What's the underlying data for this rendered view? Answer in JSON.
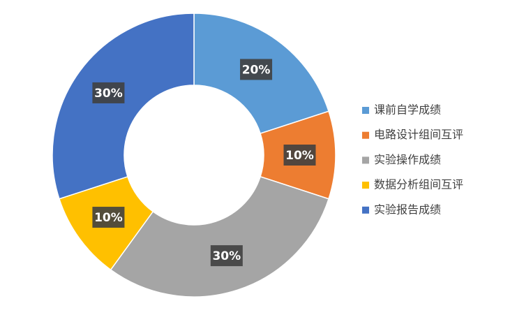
{
  "chart_data": {
    "type": "donut",
    "categories": [
      "课前自学成绩",
      "电路设计组间互评",
      "实验操作成绩",
      "数据分析组间互评",
      "实验报告成绩"
    ],
    "values": [
      20,
      10,
      30,
      10,
      30
    ],
    "value_labels": [
      "20%",
      "10%",
      "30%",
      "10%",
      "30%"
    ],
    "colors": [
      "#5b9bd5",
      "#ed7d31",
      "#a5a5a5",
      "#ffc000",
      "#4472c4"
    ],
    "legend": "right"
  }
}
